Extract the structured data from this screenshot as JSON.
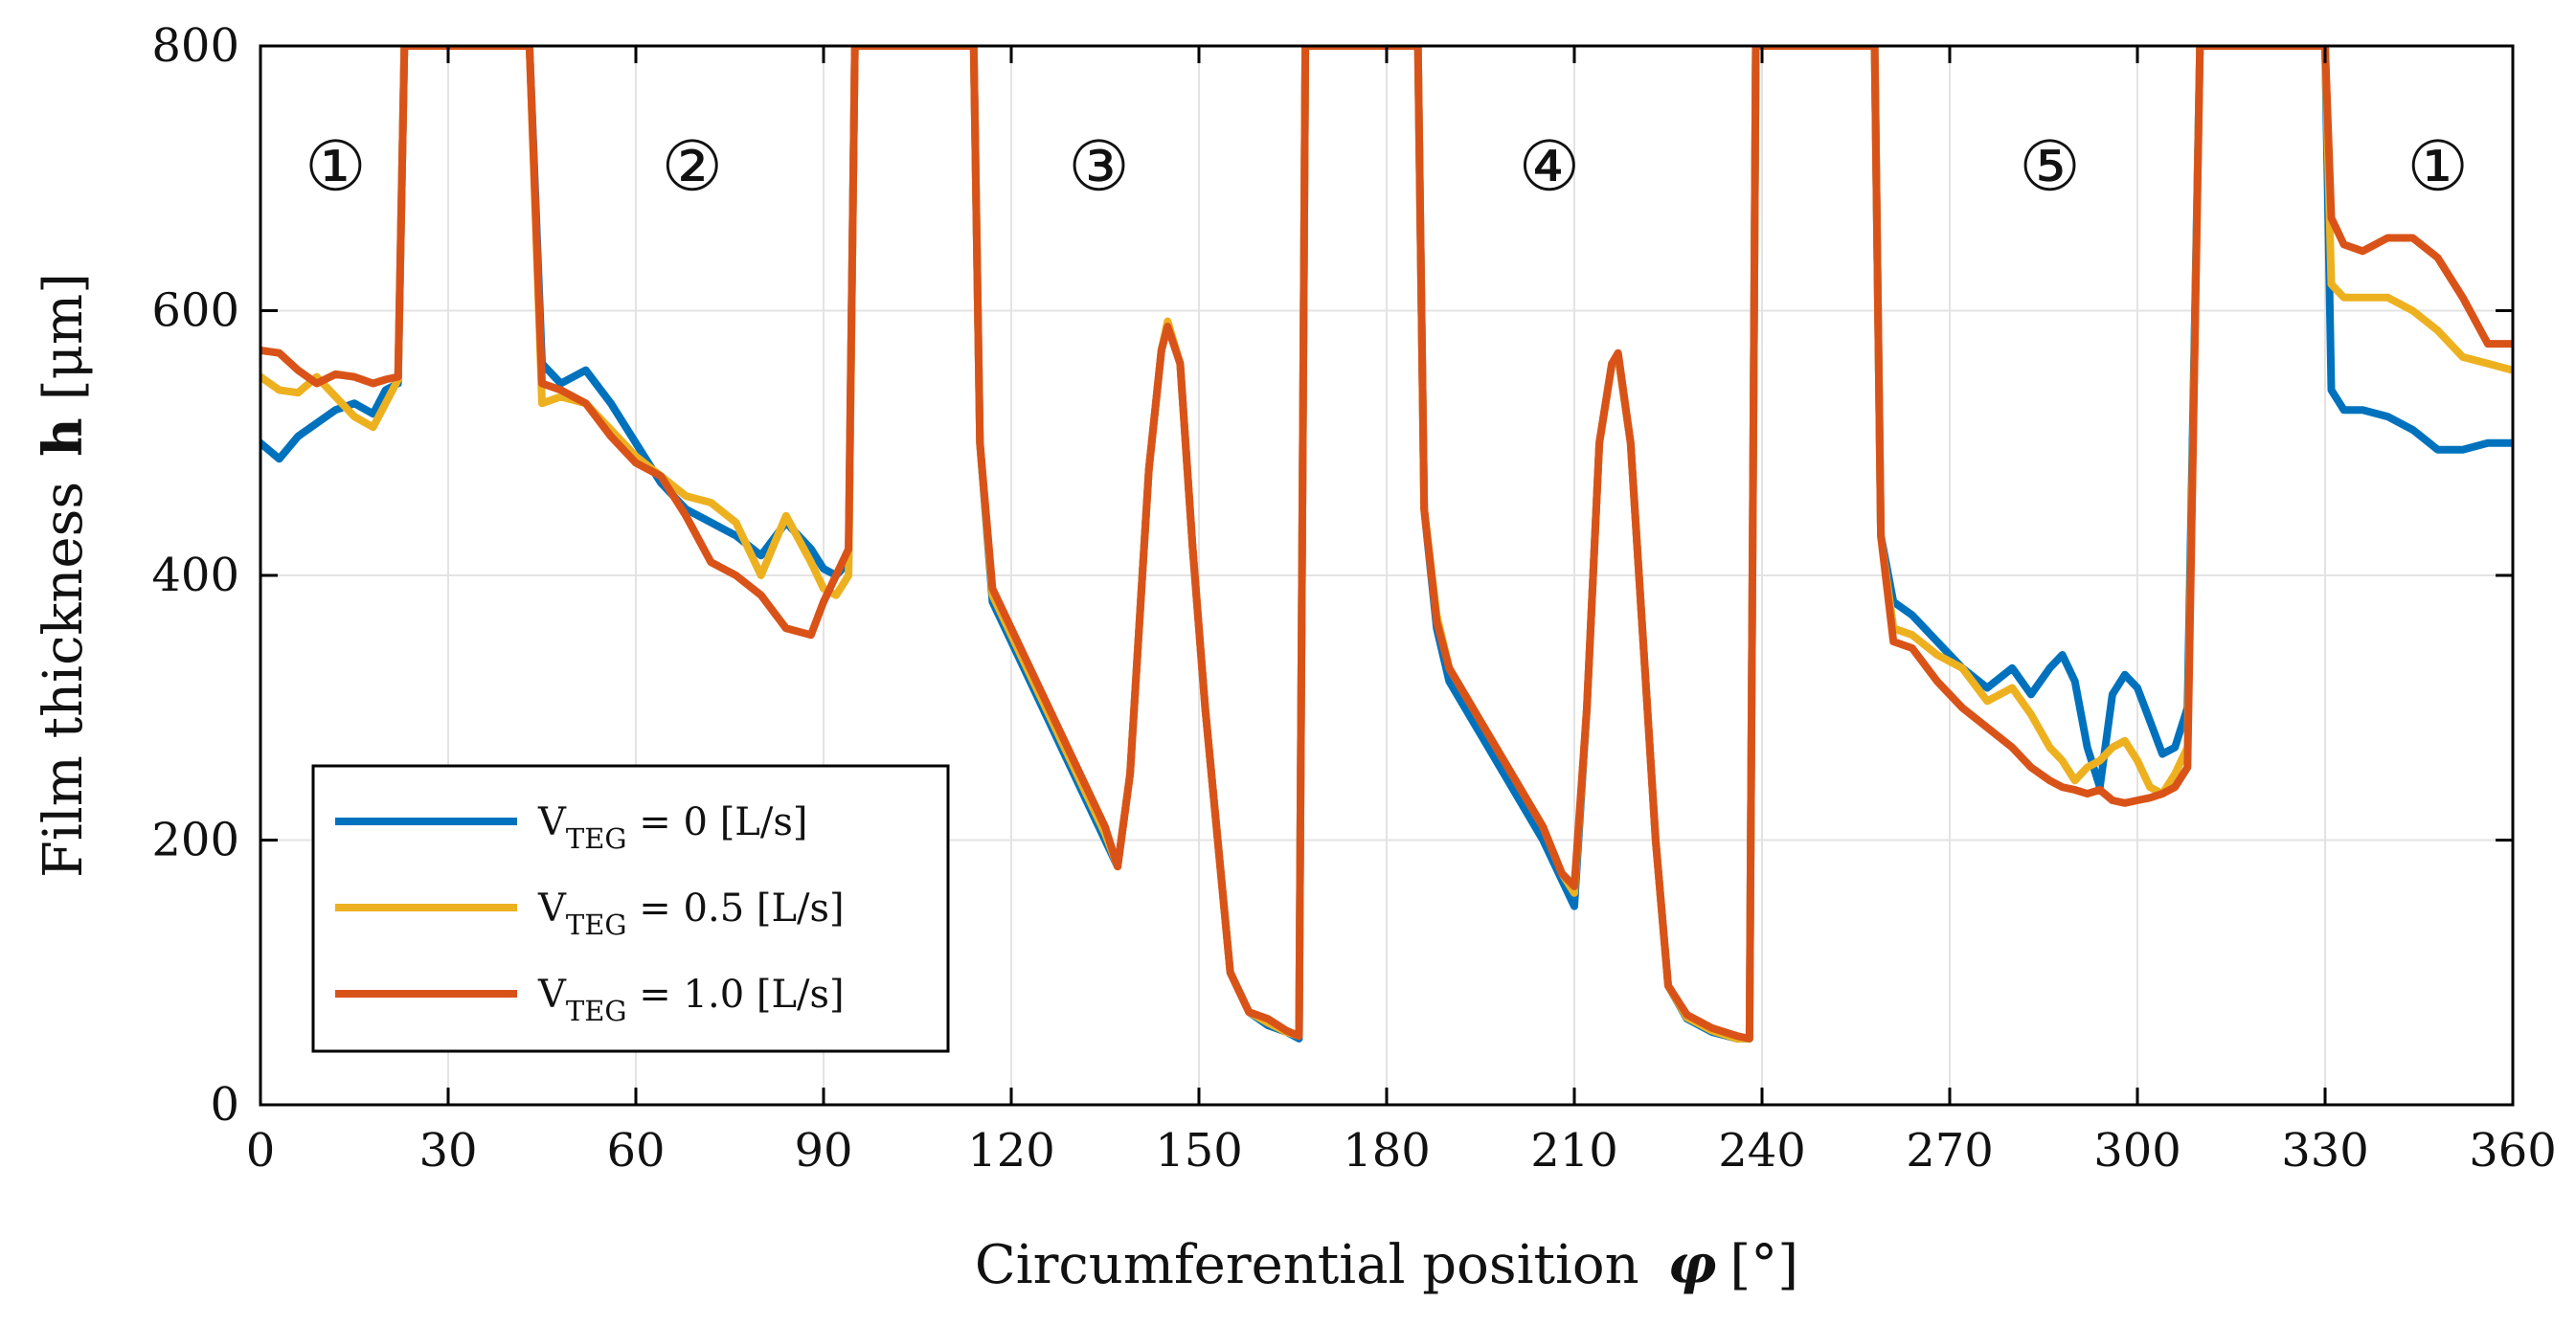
{
  "chart_data": {
    "type": "line",
    "xlabel": "Circumferential position",
    "xlabel_symbol": "φ",
    "xlabel_unit": "[°]",
    "ylabel": "Film thickness",
    "ylabel_symbol": "h",
    "ylabel_unit": "[μm]",
    "xlim": [
      0,
      360
    ],
    "ylim": [
      0,
      800
    ],
    "xticks": [
      0,
      30,
      60,
      90,
      120,
      150,
      180,
      210,
      240,
      270,
      300,
      330,
      360
    ],
    "yticks": [
      0,
      200,
      400,
      600,
      800
    ],
    "grid": true,
    "legend_position": "bottom-left",
    "pad_labels": [
      {
        "text": "①",
        "x": 12,
        "y": 710
      },
      {
        "text": "②",
        "x": 69,
        "y": 710
      },
      {
        "text": "③",
        "x": 134,
        "y": 710
      },
      {
        "text": "④",
        "x": 206,
        "y": 710
      },
      {
        "text": "⑤",
        "x": 286,
        "y": 710
      },
      {
        "text": "①",
        "x": 348,
        "y": 710
      }
    ],
    "series": [
      {
        "name": "V_TEG = 0 [L/s]",
        "legend_var": "V",
        "legend_sub": "TEG",
        "legend_rest": " = 0 [L/s]",
        "color": "#0072BD",
        "x": [
          0,
          3,
          6,
          9,
          12,
          15,
          18,
          20,
          22,
          23,
          43,
          45,
          48,
          52,
          56,
          60,
          64,
          68,
          72,
          76,
          80,
          84,
          88,
          90,
          92,
          94,
          95,
          114,
          115,
          117,
          120,
          125,
          130,
          135,
          137,
          139,
          142,
          144,
          145,
          147,
          149,
          151,
          153,
          155,
          158,
          161,
          164,
          166,
          167,
          185,
          186,
          188,
          190,
          195,
          200,
          205,
          208,
          210,
          212,
          214,
          216,
          217,
          219,
          221,
          223,
          225,
          228,
          232,
          236,
          238,
          239,
          258,
          259,
          261,
          264,
          268,
          272,
          276,
          280,
          283,
          286,
          288,
          290,
          292,
          294,
          296,
          298,
          300,
          302,
          304,
          306,
          308,
          310,
          311,
          330,
          331,
          333,
          336,
          340,
          344,
          348,
          352,
          356,
          360
        ],
        "y": [
          500,
          488,
          505,
          515,
          525,
          530,
          522,
          540,
          545,
          800,
          800,
          560,
          545,
          555,
          530,
          500,
          470,
          450,
          440,
          430,
          415,
          440,
          420,
          405,
          400,
          410,
          800,
          800,
          500,
          380,
          350,
          300,
          250,
          200,
          180,
          250,
          480,
          570,
          590,
          560,
          420,
          300,
          200,
          100,
          70,
          60,
          55,
          50,
          800,
          800,
          450,
          360,
          320,
          280,
          240,
          200,
          170,
          150,
          300,
          500,
          560,
          565,
          500,
          350,
          200,
          90,
          65,
          55,
          50,
          50,
          800,
          800,
          430,
          380,
          370,
          350,
          330,
          315,
          330,
          310,
          330,
          340,
          320,
          270,
          240,
          310,
          325,
          315,
          290,
          265,
          270,
          300,
          800,
          800,
          800,
          540,
          525,
          525,
          520,
          510,
          495,
          495,
          500,
          500
        ]
      },
      {
        "name": "V_TEG = 0.5 [L/s]",
        "legend_var": "V",
        "legend_sub": "TEG",
        "legend_rest": " = 0.5 [L/s]",
        "color": "#EDB120",
        "x": [
          0,
          3,
          6,
          9,
          12,
          15,
          18,
          20,
          22,
          23,
          43,
          45,
          48,
          52,
          56,
          60,
          64,
          68,
          72,
          76,
          80,
          84,
          88,
          90,
          92,
          94,
          95,
          114,
          115,
          117,
          120,
          125,
          130,
          135,
          137,
          139,
          142,
          144,
          145,
          147,
          149,
          151,
          153,
          155,
          158,
          161,
          164,
          166,
          167,
          185,
          186,
          188,
          190,
          195,
          200,
          205,
          208,
          210,
          212,
          214,
          216,
          217,
          219,
          221,
          223,
          225,
          228,
          232,
          236,
          238,
          239,
          258,
          259,
          261,
          264,
          268,
          272,
          276,
          280,
          283,
          286,
          288,
          290,
          292,
          294,
          296,
          298,
          300,
          302,
          304,
          306,
          308,
          310,
          311,
          330,
          331,
          333,
          336,
          340,
          344,
          348,
          352,
          356,
          360
        ],
        "y": [
          550,
          540,
          538,
          550,
          535,
          520,
          512,
          530,
          548,
          800,
          800,
          530,
          535,
          530,
          510,
          490,
          475,
          460,
          455,
          440,
          400,
          445,
          410,
          390,
          385,
          400,
          800,
          800,
          500,
          385,
          355,
          305,
          255,
          205,
          180,
          250,
          480,
          570,
          592,
          560,
          420,
          300,
          200,
          100,
          70,
          62,
          55,
          52,
          800,
          800,
          450,
          370,
          330,
          290,
          250,
          210,
          175,
          160,
          300,
          500,
          560,
          565,
          500,
          350,
          200,
          90,
          66,
          56,
          50,
          50,
          800,
          800,
          430,
          360,
          355,
          340,
          330,
          305,
          315,
          295,
          270,
          260,
          245,
          255,
          260,
          270,
          275,
          260,
          240,
          235,
          250,
          270,
          800,
          800,
          800,
          620,
          610,
          610,
          610,
          600,
          585,
          565,
          560,
          555
        ]
      },
      {
        "name": "V_TEG = 1.0 [L/s]",
        "legend_var": "V",
        "legend_sub": "TEG",
        "legend_rest": " = 1.0 [L/s]",
        "color": "#D95319",
        "x": [
          0,
          3,
          6,
          9,
          12,
          15,
          18,
          20,
          22,
          23,
          43,
          45,
          48,
          52,
          56,
          60,
          64,
          68,
          72,
          76,
          80,
          84,
          88,
          90,
          92,
          94,
          95,
          114,
          115,
          117,
          120,
          125,
          130,
          135,
          137,
          139,
          142,
          144,
          145,
          147,
          149,
          151,
          153,
          155,
          158,
          161,
          164,
          166,
          167,
          185,
          186,
          188,
          190,
          195,
          200,
          205,
          208,
          210,
          212,
          214,
          216,
          217,
          219,
          221,
          223,
          225,
          228,
          232,
          236,
          238,
          239,
          258,
          259,
          261,
          264,
          268,
          272,
          276,
          280,
          283,
          286,
          288,
          290,
          292,
          294,
          296,
          298,
          300,
          302,
          304,
          306,
          308,
          310,
          311,
          330,
          331,
          333,
          336,
          340,
          344,
          348,
          352,
          356,
          360
        ],
        "y": [
          570,
          568,
          555,
          545,
          552,
          550,
          545,
          548,
          550,
          800,
          800,
          545,
          540,
          530,
          505,
          485,
          475,
          445,
          410,
          400,
          385,
          360,
          355,
          380,
          400,
          420,
          800,
          800,
          500,
          390,
          360,
          310,
          260,
          210,
          180,
          250,
          480,
          570,
          588,
          560,
          420,
          300,
          200,
          100,
          70,
          65,
          56,
          52,
          800,
          800,
          450,
          365,
          330,
          290,
          250,
          210,
          175,
          165,
          300,
          500,
          560,
          568,
          500,
          350,
          200,
          90,
          68,
          58,
          52,
          50,
          800,
          800,
          430,
          350,
          345,
          320,
          300,
          285,
          270,
          255,
          245,
          240,
          238,
          235,
          238,
          230,
          228,
          230,
          232,
          235,
          240,
          255,
          800,
          800,
          800,
          670,
          650,
          645,
          655,
          655,
          640,
          610,
          575,
          575
        ]
      }
    ]
  }
}
